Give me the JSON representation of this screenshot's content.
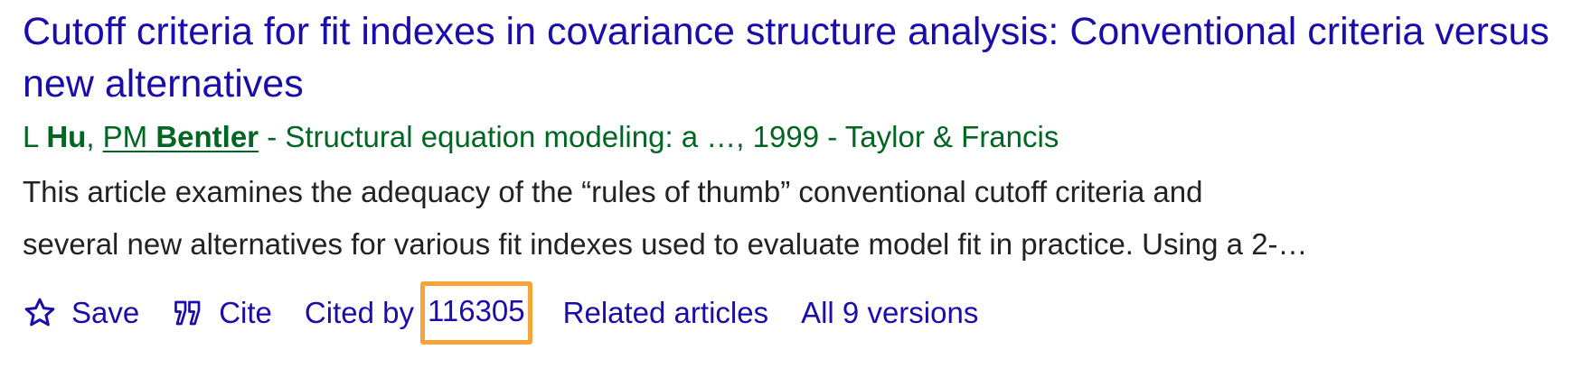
{
  "result": {
    "title": "Cutoff criteria for fit indexes in covariance structure analysis: Conventional criteria versus new alternatives",
    "authors": {
      "author1_initial": "L",
      "author1_last": "Hu",
      "separator": ",",
      "author2_initial": "PM",
      "author2_last": "Bentler"
    },
    "venue_text": "- Structural equation modeling: a …, 1999 - Taylor & Francis",
    "snippet_lines": [
      "This article examines the adequacy of the “rules of thumb” conventional cutoff criteria and",
      "several new alternatives for various fit indexes used to evaluate model fit in practice. Using a 2-…"
    ]
  },
  "actions": {
    "save_label": "Save",
    "save_icon": "star-outline-icon",
    "cite_label": "Cite",
    "cite_icon": "quote-icon",
    "cited_by_label": "Cited by",
    "cited_by_count": "116305",
    "related_label": "Related articles",
    "versions_label": "All 9 versions"
  },
  "colors": {
    "link": "#1a0dab",
    "byline": "#006621",
    "snippet": "#222222",
    "highlight": "#f5a53a"
  }
}
